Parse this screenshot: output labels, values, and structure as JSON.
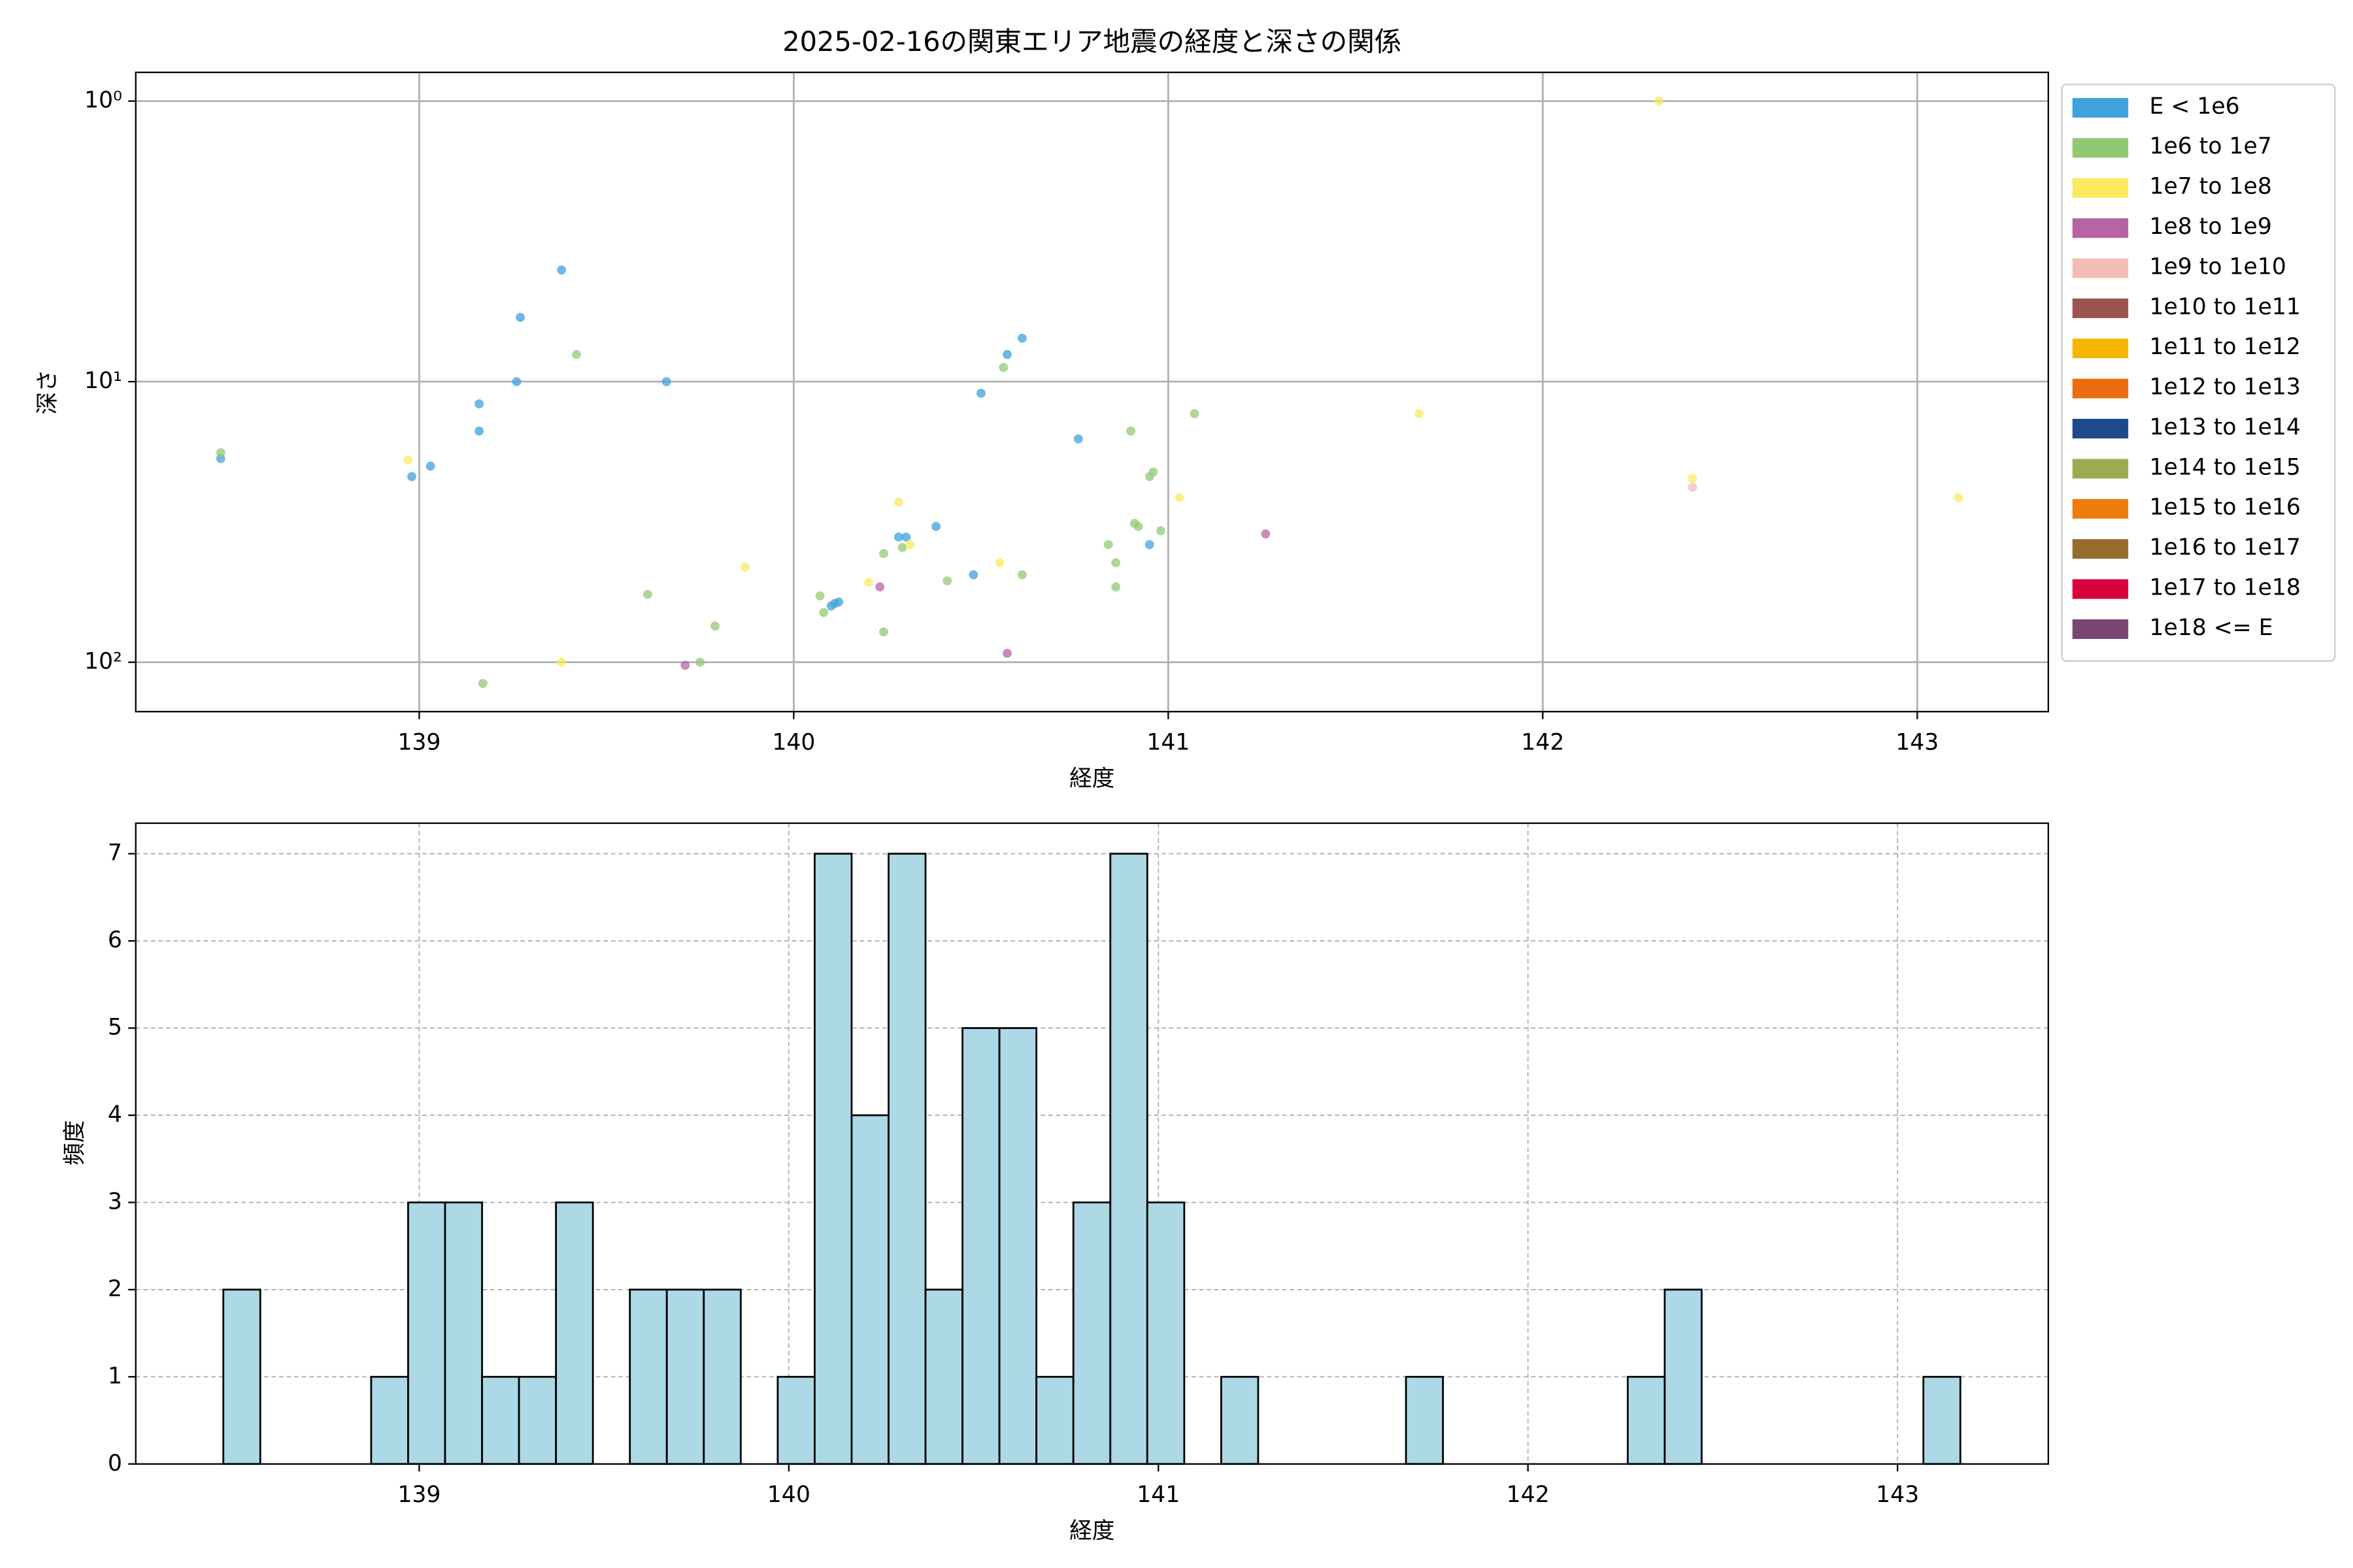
{
  "chart_data": [
    {
      "type": "scatter",
      "title": "2025-02-16の関東エリア地震の経度と深さの関係",
      "xlabel": "経度",
      "ylabel": "深さ",
      "xlim": [
        138.243,
        143.35
      ],
      "xticks": [
        139,
        140,
        141,
        142,
        143
      ],
      "ylim": [
        0.79,
        150
      ],
      "log_y": true,
      "invert_y": true,
      "yticks": [
        {
          "value": 1,
          "label": "10⁰"
        },
        {
          "value": 10,
          "label": "10¹"
        },
        {
          "value": 100,
          "label": "10²"
        }
      ],
      "grid": true,
      "legend": "outside right",
      "series": [
        {
          "name": "E < 1e6",
          "color": "#3fa2dc",
          "x": [
            138.47,
            138.98,
            139.03,
            139.16,
            139.16,
            139.26,
            139.27,
            139.38,
            139.66,
            140.28,
            140.3,
            140.38,
            140.11,
            140.12,
            140.1,
            140.48,
            140.5,
            140.57,
            140.61,
            140.76,
            140.95
          ],
          "values": [
            18.8,
            21.8,
            20.0,
            12.0,
            15.0,
            10,
            5.9,
            4.0,
            10,
            35.8,
            35.8,
            32.8,
            61.7,
            61,
            63,
            48.8,
            11.0,
            8.0,
            7.0,
            16.0,
            38.1
          ]
        },
        {
          "name": "1e6 to 1e7",
          "color": "#91c973",
          "x": [
            138.47,
            139.17,
            139.42,
            139.61,
            139.75,
            139.79,
            140.07,
            140.08,
            140.24,
            140.24,
            140.29,
            140.41,
            140.56,
            140.61,
            140.84,
            140.86,
            140.86,
            140.9,
            140.91,
            140.92,
            140.95,
            140.96,
            140.98,
            141.07
          ],
          "values": [
            17.9,
            119,
            8.0,
            57.3,
            100,
            74.3,
            58,
            66.5,
            41,
            78,
            39,
            51.3,
            8.9,
            48.8,
            38.1,
            44.2,
            53.9,
            15.0,
            32,
            32.8,
            21.8,
            21,
            34,
            13
          ]
        },
        {
          "name": "1e7 to 1e8",
          "color": "#fbe95f",
          "x": [
            138.97,
            139.38,
            139.87,
            140.2,
            140.28,
            140.31,
            140.55,
            141.03,
            141.67,
            142.31,
            142.4,
            143.11
          ],
          "values": [
            19,
            100,
            45.8,
            51.9,
            26.9,
            38.1,
            44.2,
            25.9,
            13,
            1.0,
            22.1,
            25.9
          ]
        },
        {
          "name": "1e8 to 1e9",
          "color": "#b564a4",
          "x": [
            140.23,
            139.71,
            140.57,
            141.26
          ],
          "values": [
            53.9,
            102.5,
            92.9,
            34.9
          ]
        },
        {
          "name": "1e9 to 1e10",
          "color": "#f3bcb8",
          "x": [
            142.4
          ],
          "values": [
            23.8
          ]
        },
        {
          "name": "1e10 to 1e11",
          "color": "#9c5450",
          "x": [],
          "values": []
        },
        {
          "name": "1e11 to 1e12",
          "color": "#f8b500",
          "x": [],
          "values": []
        },
        {
          "name": "1e12 to 1e13",
          "color": "#ec6d0f",
          "x": [],
          "values": []
        },
        {
          "name": "1e13 to 1e14",
          "color": "#1e4a8b",
          "x": [],
          "values": []
        },
        {
          "name": "1e14 to 1e15",
          "color": "#9aac4f",
          "x": [],
          "values": []
        },
        {
          "name": "1e15 to 1e16",
          "color": "#ee7b0d",
          "x": [],
          "values": []
        },
        {
          "name": "1e16 to 1e17",
          "color": "#966b2c",
          "x": [],
          "values": []
        },
        {
          "name": "1e17 to 1e18",
          "color": "#d9003c",
          "x": [],
          "values": []
        },
        {
          "name": "1e18 <= E",
          "color": "#7a4570",
          "x": [],
          "values": []
        }
      ]
    },
    {
      "type": "histogram",
      "xlabel": "経度",
      "ylabel": "頻度",
      "xlim": [
        138.233,
        143.408
      ],
      "xticks": [
        139,
        140,
        141,
        142,
        143
      ],
      "ylim": [
        0,
        7.35
      ],
      "yticks": [
        0,
        1,
        2,
        3,
        4,
        5,
        6,
        7
      ],
      "grid": true,
      "color": "#add8e6",
      "edgecolor": "#000000",
      "bins": [
        138.47,
        138.57,
        138.67,
        138.77,
        138.87,
        138.97,
        139.07,
        139.17,
        139.27,
        139.37,
        139.47,
        139.57,
        139.67,
        139.77,
        139.87,
        139.97,
        140.07,
        140.17,
        140.27,
        140.37,
        140.47,
        140.57,
        140.67,
        140.77,
        140.87,
        140.97,
        141.07,
        141.17,
        141.27,
        141.37,
        141.47,
        141.57,
        141.67,
        141.77,
        141.87,
        141.97,
        142.07,
        142.17,
        142.27,
        142.37,
        142.47,
        142.57,
        142.67,
        142.77,
        142.87,
        142.97,
        143.07,
        143.17
      ],
      "values": [
        2,
        0,
        0,
        0,
        1,
        3,
        3,
        1,
        1,
        3,
        0,
        2,
        2,
        2,
        0,
        1,
        7,
        4,
        7,
        2,
        5,
        5,
        1,
        3,
        7,
        3,
        0,
        1,
        0,
        0,
        0,
        0,
        1,
        0,
        0,
        0,
        0,
        0,
        1,
        2,
        0,
        0,
        0,
        0,
        0,
        0,
        1
      ]
    }
  ]
}
